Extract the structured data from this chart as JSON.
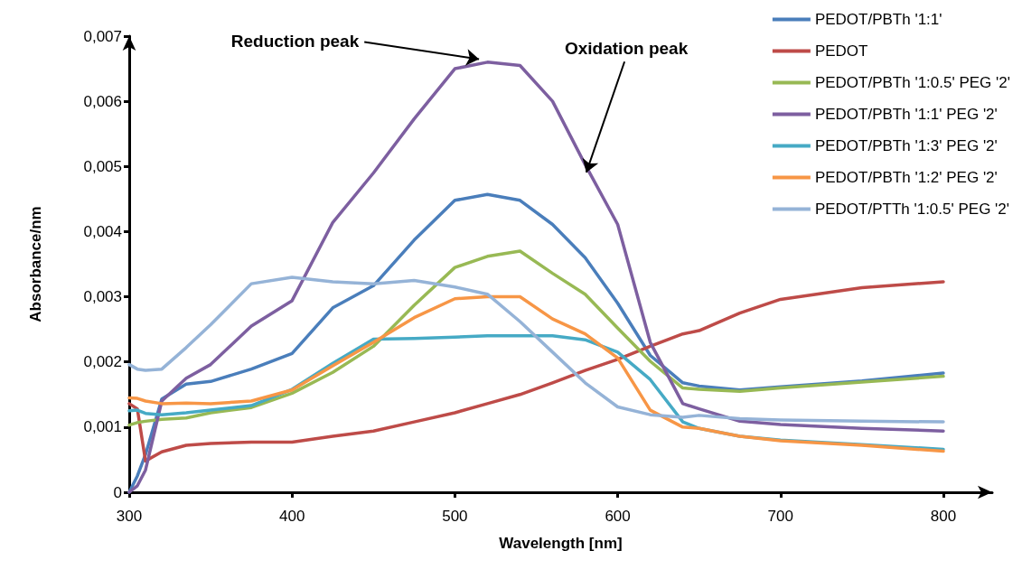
{
  "chart_data": {
    "type": "line",
    "xlabel": "Wavelength [nm]",
    "ylabel": "Absorbance/nm",
    "x": [
      300,
      305,
      310,
      320,
      335,
      350,
      375,
      400,
      425,
      450,
      475,
      500,
      520,
      540,
      560,
      580,
      600,
      620,
      640,
      650,
      675,
      700,
      750,
      800
    ],
    "series": [
      {
        "name": "PEDOT/PBTh '1:1'",
        "color": "#4a7ebb",
        "values": [
          0,
          0.00025,
          0.00058,
          0.00143,
          0.00166,
          0.0017,
          0.00189,
          0.00213,
          0.00283,
          0.00317,
          0.00387,
          0.00448,
          0.00457,
          0.00448,
          0.00411,
          0.0036,
          0.0029,
          0.0021,
          0.00168,
          0.00163,
          0.00157,
          0.00162,
          0.00171,
          0.00183
        ]
      },
      {
        "name": "PEDOT",
        "color": "#be4b48",
        "values": [
          0.00136,
          0.00128,
          0.00048,
          0.00062,
          0.00072,
          0.00075,
          0.00077,
          0.00077,
          0.00086,
          0.00094,
          0.00108,
          0.00122,
          0.00136,
          0.0015,
          0.00168,
          0.00187,
          0.00204,
          0.00224,
          0.00243,
          0.00248,
          0.00275,
          0.00296,
          0.00314,
          0.00323
        ]
      },
      {
        "name": "PEDOT/PBTh '1:0.5' PEG '2'",
        "color": "#98b954",
        "values": [
          0.00103,
          0.00107,
          0.00109,
          0.00112,
          0.00114,
          0.00122,
          0.0013,
          0.00152,
          0.00184,
          0.00224,
          0.00287,
          0.00345,
          0.00362,
          0.0037,
          0.00336,
          0.00304,
          0.00252,
          0.00201,
          0.0016,
          0.00158,
          0.00155,
          0.0016,
          0.00169,
          0.00178
        ]
      },
      {
        "name": "PEDOT/PBTh '1:1' PEG '2'",
        "color": "#7d5fa0",
        "values": [
          0,
          0.0001,
          0.00034,
          0.0014,
          0.00175,
          0.00196,
          0.00255,
          0.00294,
          0.00414,
          0.0049,
          0.00573,
          0.0065,
          0.0066,
          0.00655,
          0.006,
          0.00503,
          0.00411,
          0.0023,
          0.00136,
          0.00128,
          0.00109,
          0.00104,
          0.00098,
          0.00094
        ]
      },
      {
        "name": "PEDOT/PBTh '1:3' PEG '2'",
        "color": "#46aac5",
        "values": [
          0.00125,
          0.00126,
          0.00121,
          0.00119,
          0.00122,
          0.00126,
          0.00133,
          0.00158,
          0.00198,
          0.00235,
          0.00236,
          0.00238,
          0.0024,
          0.0024,
          0.0024,
          0.00234,
          0.00215,
          0.00173,
          0.00108,
          0.00098,
          0.00086,
          0.0008,
          0.00073,
          0.00066
        ]
      },
      {
        "name": "PEDOT/PBTh '1:2' PEG '2'",
        "color": "#f79646",
        "values": [
          0.00145,
          0.00144,
          0.0014,
          0.00136,
          0.00137,
          0.00136,
          0.0014,
          0.00157,
          0.00194,
          0.0023,
          0.00268,
          0.00297,
          0.003,
          0.003,
          0.00266,
          0.00243,
          0.00206,
          0.00126,
          0.001,
          0.00098,
          0.00086,
          0.00079,
          0.00072,
          0.00063
        ]
      },
      {
        "name": "PEDOT/PTTh '1:0.5' PEG '2'",
        "color": "#95b3d7",
        "values": [
          0.00196,
          0.00189,
          0.00187,
          0.00189,
          0.00222,
          0.00257,
          0.0032,
          0.0033,
          0.00323,
          0.0032,
          0.00325,
          0.00315,
          0.00304,
          0.00262,
          0.00215,
          0.00168,
          0.00131,
          0.00119,
          0.00115,
          0.00118,
          0.00113,
          0.00111,
          0.00109,
          0.00108
        ]
      }
    ],
    "xlim": [
      300,
      830
    ],
    "xticks": [
      300,
      400,
      500,
      600,
      700,
      800
    ],
    "ylim": [
      0,
      0.007
    ],
    "yticks": [
      0,
      {
        "value": 0.001,
        "label": "0,001"
      },
      {
        "value": 0.002,
        "label": "0,002"
      },
      {
        "value": 0.003,
        "label": "0,003"
      },
      {
        "value": 0.004,
        "label": "0,004"
      },
      {
        "value": 0.005,
        "label": "0,005"
      },
      {
        "value": 0.006,
        "label": "0,006"
      },
      {
        "value": 0.007,
        "label": "0,007"
      }
    ],
    "annotations": [
      {
        "text": "Reduction peak",
        "x": 511,
        "y": 0.00666
      },
      {
        "text": "Oxidation peak",
        "x": 582,
        "y": 0.005
      }
    ],
    "legend": "top right",
    "grid": false,
    "marker": "none",
    "line_style": "solid"
  }
}
